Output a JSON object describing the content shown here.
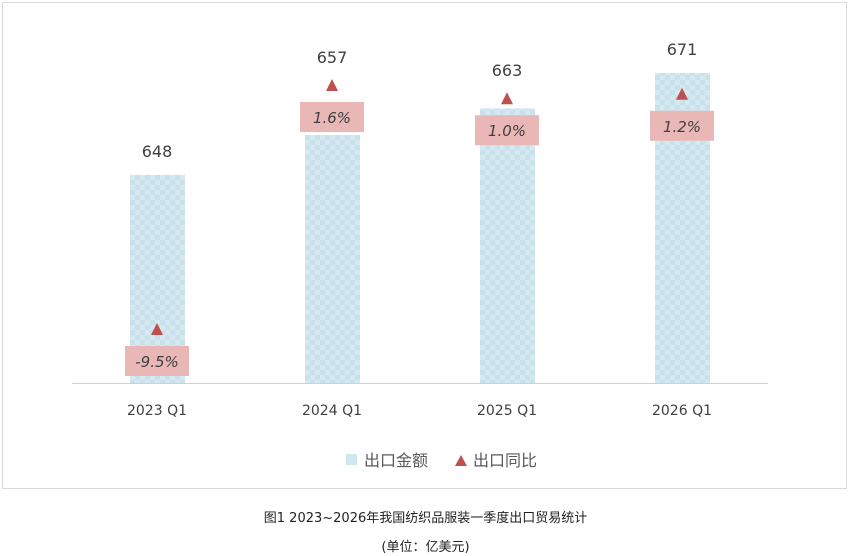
{
  "chart_data": {
    "type": "bar",
    "title": "",
    "categories": [
      "2023 Q1",
      "2024 Q1",
      "2025 Q1",
      "2026 Q1"
    ],
    "series": [
      {
        "name": "出口金额",
        "type": "bar",
        "values": [
          648,
          657,
          663,
          671
        ],
        "color": "#d2e6ee"
      },
      {
        "name": "出口同比",
        "type": "marker",
        "values": [
          -9.5,
          1.6,
          1.0,
          1.2
        ],
        "labels": [
          "-9.5%",
          "1.6%",
          "1.0%",
          "1.2%"
        ],
        "color": "#c0504d",
        "label_bg": "#e8b7b6"
      }
    ],
    "ylim": [
      601,
      671
    ],
    "y2lim": [
      -9.5,
      1.6
    ],
    "legend": "bottom",
    "grid": false
  },
  "caption": {
    "title": "图1  2023~2026年我国纺织品服装一季度出口贸易统计",
    "unit": "(单位：亿美元)"
  }
}
